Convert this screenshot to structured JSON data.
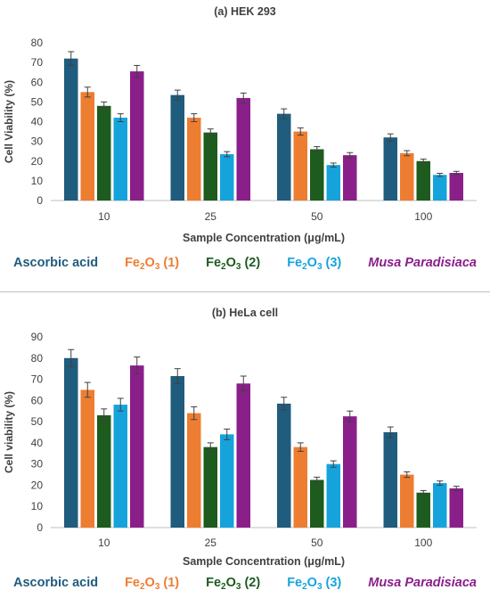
{
  "chart_data": [
    {
      "type": "bar",
      "title": "(a) HEK 293",
      "xlabel": "Sample Concentration (μg/mL)",
      "ylabel": "Cell Viability (%)",
      "ylim": [
        0,
        80
      ],
      "yticks": [
        "0",
        "10",
        "20",
        "30",
        "40",
        "50",
        "60",
        "70",
        "80"
      ],
      "categories": [
        "10",
        "25",
        "50",
        "100"
      ],
      "grid": false,
      "legend_position": "bottom",
      "series": [
        {
          "name": "Ascorbic acid",
          "color": "#1f5c7d",
          "values": [
            72,
            53.5,
            44,
            32
          ],
          "errors": [
            3.5,
            2.5,
            2.5,
            1.8
          ]
        },
        {
          "name": "Fe2O3 (1)",
          "color": "#ed7d31",
          "values": [
            55,
            42,
            35,
            24
          ],
          "errors": [
            2.5,
            2,
            1.8,
            1.3
          ]
        },
        {
          "name": "Fe2O3 (2)",
          "color": "#1e5b1e",
          "values": [
            48,
            34.5,
            26,
            20
          ],
          "errors": [
            2,
            1.8,
            1.3,
            1
          ]
        },
        {
          "name": "Fe2O3 (3)",
          "color": "#16a3dc",
          "values": [
            42,
            23.5,
            18,
            13
          ],
          "errors": [
            2,
            1.3,
            1,
            0.8
          ]
        },
        {
          "name": "Musa Paradisiaca",
          "color": "#8a1f8a",
          "values": [
            65.5,
            52,
            23,
            14
          ],
          "errors": [
            3,
            2.5,
            1.3,
            0.8
          ]
        }
      ]
    },
    {
      "type": "bar",
      "title": "(b) HeLa cell",
      "xlabel": "Sample Concentration (μg/mL)",
      "ylabel": "Cell viability (%)",
      "ylim": [
        0,
        90
      ],
      "yticks": [
        "0",
        "10",
        "20",
        "30",
        "40",
        "50",
        "60",
        "70",
        "80",
        "90"
      ],
      "categories": [
        "10",
        "25",
        "50",
        "100"
      ],
      "grid": false,
      "legend_position": "bottom",
      "series": [
        {
          "name": "Ascorbic acid",
          "color": "#1f5c7d",
          "values": [
            80,
            71.5,
            58.5,
            45
          ],
          "errors": [
            4,
            3.5,
            3,
            2.5
          ]
        },
        {
          "name": "Fe2O3 (1)",
          "color": "#ed7d31",
          "values": [
            65,
            54,
            38,
            25
          ],
          "errors": [
            3.5,
            3,
            2,
            1.3
          ]
        },
        {
          "name": "Fe2O3 (2)",
          "color": "#1e5b1e",
          "values": [
            53,
            38,
            22.5,
            16.5
          ],
          "errors": [
            3,
            2,
            1.3,
            1
          ]
        },
        {
          "name": "Fe2O3 (3)",
          "color": "#16a3dc",
          "values": [
            58,
            44,
            30,
            21
          ],
          "errors": [
            3,
            2.5,
            1.5,
            1
          ]
        },
        {
          "name": "Musa Paradisiaca",
          "color": "#8a1f8a",
          "values": [
            76.5,
            68,
            52.5,
            18.5
          ],
          "errors": [
            4,
            3.5,
            2.5,
            1
          ]
        }
      ]
    }
  ],
  "legend": [
    {
      "base": "Ascorbic acid",
      "sub": "",
      "suffix": "",
      "color": "#1f5c7d",
      "italic": false
    },
    {
      "base": "Fe",
      "sub": "2",
      "mid": "O",
      "sub2": "3",
      "suffix": " (1)",
      "color": "#ed7d31",
      "italic": false
    },
    {
      "base": "Fe",
      "sub": "2",
      "mid": "O",
      "sub2": "3",
      "suffix": " (2)",
      "color": "#1e5b1e",
      "italic": false
    },
    {
      "base": "Fe",
      "sub": "2",
      "mid": "O",
      "sub2": "3",
      "suffix": " (3)",
      "color": "#16a3dc",
      "italic": false
    },
    {
      "base": "Musa Paradisiaca",
      "sub": "",
      "suffix": "",
      "color": "#8a1f8a",
      "italic": true
    }
  ]
}
